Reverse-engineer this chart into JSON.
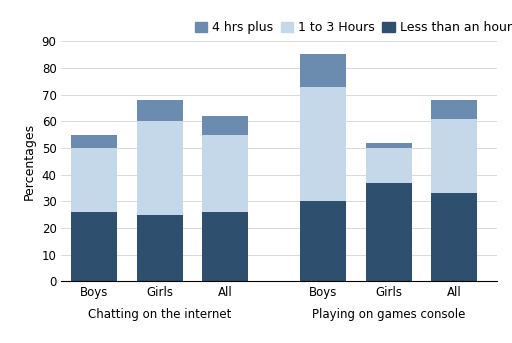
{
  "groups": [
    "Boys",
    "Girls",
    "All",
    "Boys",
    "Girls",
    "All"
  ],
  "group_labels": [
    "Boys",
    "Girls",
    "All",
    "Boys",
    "Girls",
    "All"
  ],
  "section_labels": [
    "Chatting on the internet",
    "Playing on games console"
  ],
  "less_than_hour": [
    26,
    25,
    26,
    30,
    37,
    33
  ],
  "one_to_three": [
    24,
    35,
    29,
    43,
    13,
    28
  ],
  "four_plus": [
    5,
    8,
    7,
    12,
    2,
    7
  ],
  "colors": {
    "less_than_hour": "#2e4f6e",
    "one_to_three": "#c5d8ea",
    "four_plus": "#6b8cae"
  },
  "ylabel": "Percentages",
  "ylim": [
    0,
    90
  ],
  "yticks": [
    0,
    10,
    20,
    30,
    40,
    50,
    60,
    70,
    80,
    90
  ],
  "legend_labels": [
    "4 hrs plus",
    "1 to 3 Hours",
    "Less than an hour"
  ],
  "background_color": "#ffffff",
  "axis_fontsize": 9,
  "tick_fontsize": 8.5,
  "section_fontsize": 8.5
}
